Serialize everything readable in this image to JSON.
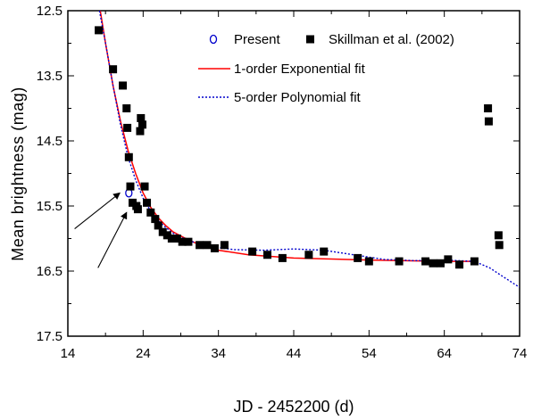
{
  "chart_data": {
    "type": "scatter",
    "xlabel": "JD - 2452200 (d)",
    "ylabel": "Mean brightness (mag)",
    "xlim": [
      14,
      74
    ],
    "ylim": [
      12.5,
      17.5
    ],
    "y_inverted": true,
    "x_ticks": [
      "14",
      "24",
      "34",
      "44",
      "54",
      "64",
      "74"
    ],
    "y_ticks": [
      "12.5",
      "13.5",
      "14.5",
      "15.5",
      "16.5",
      "17.5"
    ],
    "series": [
      {
        "name": "Present",
        "marker": "open-circle",
        "color": "#0000cc",
        "points": [
          [
            22.1,
            15.3
          ]
        ]
      },
      {
        "name": "Skillman et al. (2002)",
        "marker": "filled-square",
        "color": "#000000",
        "points": [
          [
            18.1,
            12.8
          ],
          [
            20.0,
            13.4
          ],
          [
            21.3,
            13.65
          ],
          [
            21.8,
            14.0
          ],
          [
            21.9,
            14.3
          ],
          [
            22.1,
            14.75
          ],
          [
            22.3,
            15.2
          ],
          [
            22.6,
            15.45
          ],
          [
            23.1,
            15.5
          ],
          [
            23.3,
            15.55
          ],
          [
            23.6,
            14.35
          ],
          [
            23.7,
            14.15
          ],
          [
            23.9,
            14.25
          ],
          [
            24.2,
            15.2
          ],
          [
            24.5,
            15.45
          ],
          [
            25.0,
            15.6
          ],
          [
            25.6,
            15.7
          ],
          [
            26.0,
            15.8
          ],
          [
            26.6,
            15.9
          ],
          [
            27.2,
            15.95
          ],
          [
            27.8,
            16.0
          ],
          [
            28.5,
            16.0
          ],
          [
            29.2,
            16.05
          ],
          [
            30.0,
            16.05
          ],
          [
            31.5,
            16.1
          ],
          [
            32.5,
            16.1
          ],
          [
            33.5,
            16.15
          ],
          [
            34.8,
            16.1
          ],
          [
            38.5,
            16.2
          ],
          [
            40.5,
            16.25
          ],
          [
            42.5,
            16.3
          ],
          [
            46.0,
            16.25
          ],
          [
            48.0,
            16.2
          ],
          [
            52.5,
            16.3
          ],
          [
            54.0,
            16.35
          ],
          [
            58.0,
            16.35
          ],
          [
            61.5,
            16.35
          ],
          [
            62.5,
            16.38
          ],
          [
            63.5,
            16.38
          ],
          [
            64.5,
            16.32
          ],
          [
            66.0,
            16.4
          ],
          [
            68.0,
            16.35
          ],
          [
            69.8,
            14.0
          ],
          [
            69.9,
            14.2
          ],
          [
            71.2,
            15.95
          ],
          [
            71.3,
            16.1
          ]
        ]
      },
      {
        "name": "1-order Exponential fit",
        "line": "solid",
        "color": "#ff0000",
        "points": [
          [
            18.3,
            12.5
          ],
          [
            19,
            13.0
          ],
          [
            20,
            13.65
          ],
          [
            21,
            14.2
          ],
          [
            22,
            14.65
          ],
          [
            23,
            15.0
          ],
          [
            24,
            15.3
          ],
          [
            25,
            15.52
          ],
          [
            26,
            15.68
          ],
          [
            27,
            15.8
          ],
          [
            28,
            15.9
          ],
          [
            30,
            16.02
          ],
          [
            32,
            16.12
          ],
          [
            34,
            16.18
          ],
          [
            38,
            16.25
          ],
          [
            44,
            16.3
          ],
          [
            54,
            16.33
          ],
          [
            64,
            16.35
          ],
          [
            68,
            16.35
          ]
        ]
      },
      {
        "name": "5-order Polynomial fit",
        "line": "dotted",
        "color": "#0000cc",
        "points": [
          [
            18.2,
            12.5
          ],
          [
            19,
            13.0
          ],
          [
            20,
            13.65
          ],
          [
            21,
            14.25
          ],
          [
            22,
            14.75
          ],
          [
            23,
            15.1
          ],
          [
            24,
            15.38
          ],
          [
            25,
            15.58
          ],
          [
            26,
            15.72
          ],
          [
            27,
            15.83
          ],
          [
            28,
            15.92
          ],
          [
            30,
            16.03
          ],
          [
            32,
            16.1
          ],
          [
            34,
            16.14
          ],
          [
            36,
            16.17
          ],
          [
            40,
            16.18
          ],
          [
            44,
            16.16
          ],
          [
            48,
            16.18
          ],
          [
            52,
            16.25
          ],
          [
            56,
            16.32
          ],
          [
            60,
            16.34
          ],
          [
            64,
            16.33
          ],
          [
            68,
            16.35
          ],
          [
            70,
            16.45
          ],
          [
            72,
            16.6
          ],
          [
            74,
            16.75
          ]
        ]
      }
    ],
    "legend": {
      "placement": "top-right",
      "items": [
        {
          "label": "Present",
          "marker": "open-circle",
          "color": "#0000cc"
        },
        {
          "label": "Skillman et al. (2002)",
          "marker": "filled-square",
          "color": "#000000"
        },
        {
          "label": "1-order Exponential fit",
          "line": "solid",
          "color": "#ff0000"
        },
        {
          "label": "5-order Polynomial fit",
          "line": "dotted",
          "color": "#0000cc"
        }
      ]
    },
    "annotations": [
      {
        "type": "arrow",
        "from": [
          14.9,
          15.85
        ],
        "to": [
          20.9,
          15.3
        ]
      },
      {
        "type": "arrow",
        "from": [
          18.0,
          16.45
        ],
        "to": [
          21.8,
          15.6
        ]
      }
    ]
  }
}
